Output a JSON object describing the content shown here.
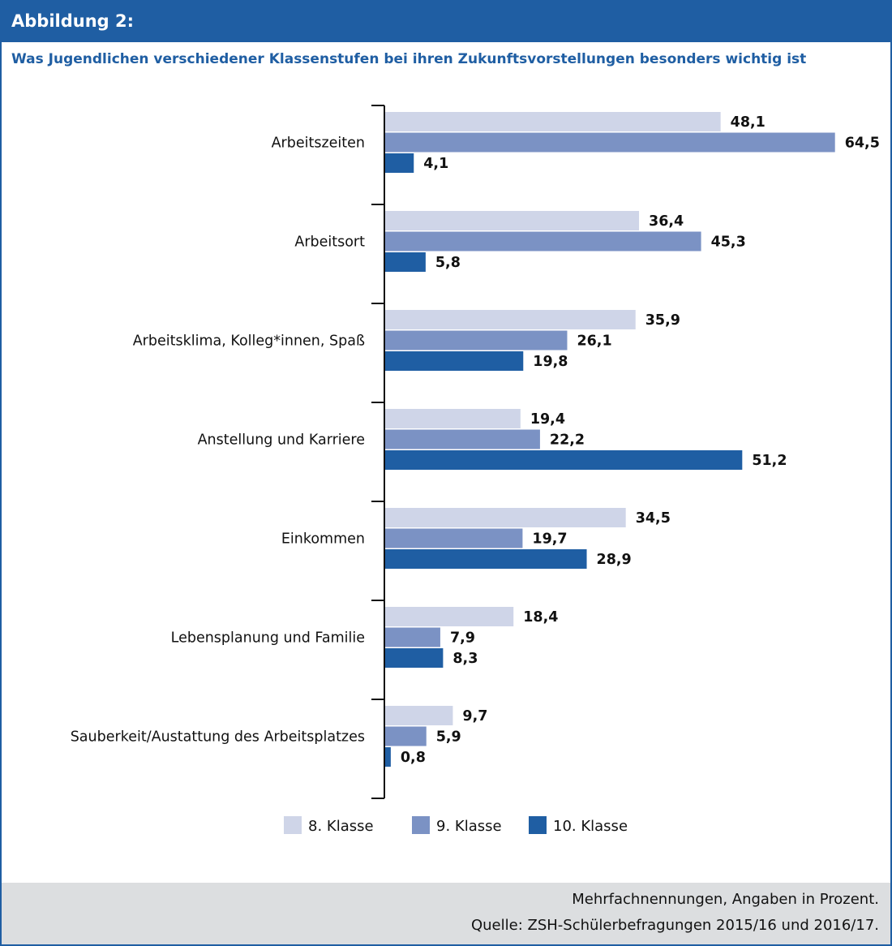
{
  "figure_label": "Abbildung 2:",
  "chart_data": {
    "type": "bar",
    "orientation": "horizontal",
    "title": "Was Jugendlichen verschiedener Klassenstufen bei ihren Zukunftsvorstellungen besonders wichtig ist",
    "categories": [
      "Arbeitszeiten",
      "Arbeitsort",
      "Arbeitsklima, Kolleg*innen, Spaß",
      "Anstellung und Karriere",
      "Einkommen",
      "Lebensplanung und Familie",
      "Sauberkeit/Austattung des Arbeitsplatzes"
    ],
    "series": [
      {
        "name": "8. Klasse",
        "color": "#cfd5e8",
        "values": [
          48.1,
          36.4,
          35.9,
          19.4,
          34.5,
          18.4,
          9.7
        ],
        "labels": [
          "48,1",
          "36,4",
          "35,9",
          "19,4",
          "34,5",
          "18,4",
          "9,7"
        ]
      },
      {
        "name": "9. Klasse",
        "color": "#7b92c4",
        "values": [
          64.5,
          45.3,
          26.1,
          22.2,
          19.7,
          7.9,
          5.9
        ],
        "labels": [
          "64,5",
          "45,3",
          "26,1",
          "22,2",
          "19,7",
          "7,9",
          "5,9"
        ]
      },
      {
        "name": "10. Klasse",
        "color": "#1f5ea3",
        "values": [
          4.1,
          5.8,
          19.8,
          51.2,
          28.9,
          8.3,
          0.8
        ],
        "labels": [
          "4,1",
          "5,8",
          "19,8",
          "51,2",
          "28,9",
          "8,3",
          "0,8"
        ]
      }
    ],
    "legend_position": "bottom",
    "grid": false
  },
  "footer": {
    "note": "Mehrfachnennungen, Angaben in Prozent.",
    "source": "Quelle: ZSH-Schülerbefragungen 2015/16 und 2016/17."
  }
}
